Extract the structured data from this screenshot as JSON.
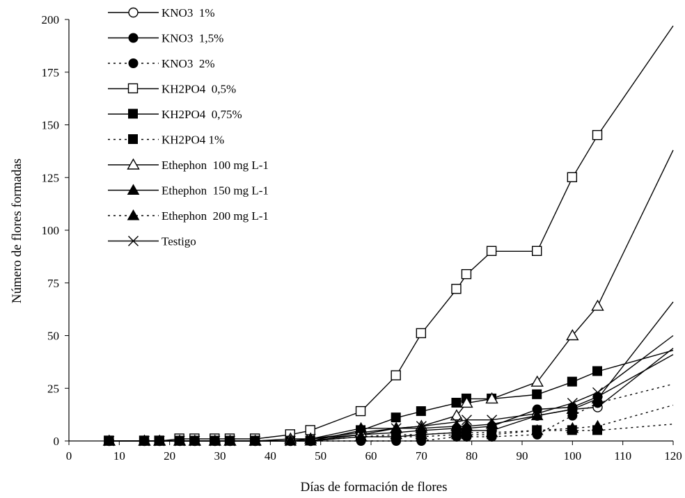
{
  "chart_data": {
    "type": "line",
    "title": "",
    "xlabel": "Días de formación de flores",
    "ylabel": "Número de flores formadas",
    "xlim": [
      0,
      120
    ],
    "ylim": [
      0,
      200
    ],
    "xticks": [
      "0",
      "10",
      "20",
      "30",
      "40",
      "50",
      "60",
      "70",
      "80",
      "90",
      "100",
      "110",
      "120"
    ],
    "yticks": [
      "0",
      "25",
      "50",
      "75",
      "100",
      "125",
      "150",
      "175",
      "200"
    ],
    "grid": false,
    "legend_position": "top-left",
    "line_color": "#000000",
    "series": [
      {
        "name": "KNO3  1%",
        "marker": "circle-open",
        "line": "solid",
        "x": [
          8,
          15,
          18,
          22,
          25,
          29,
          32,
          37,
          44,
          48,
          58,
          65,
          70,
          77,
          79,
          84,
          93,
          100,
          105
        ],
        "y": [
          0,
          0,
          0,
          0,
          0,
          0,
          0,
          0,
          0,
          0,
          2,
          2,
          3,
          4,
          5,
          5,
          12,
          15,
          16
        ],
        "trend": [
          [
            105,
            16
          ],
          [
            120,
            44
          ]
        ]
      },
      {
        "name": "KNO3  1,5%",
        "marker": "circle-filled",
        "line": "solid",
        "x": [
          8,
          15,
          18,
          22,
          25,
          29,
          32,
          37,
          44,
          48,
          58,
          65,
          70,
          77,
          79,
          84,
          93,
          100,
          105
        ],
        "y": [
          0,
          0,
          0,
          0,
          0,
          0,
          0,
          0,
          0,
          0,
          3,
          4,
          5,
          6,
          6,
          7,
          15,
          16,
          21
        ],
        "trend": [
          [
            105,
            21
          ],
          [
            120,
            41
          ]
        ]
      },
      {
        "name": "KNO3  2%",
        "marker": "circle-filled",
        "line": "dotted",
        "x": [
          8,
          15,
          18,
          22,
          25,
          29,
          32,
          37,
          44,
          48,
          58,
          65,
          70,
          77,
          79,
          84,
          93,
          100,
          105
        ],
        "y": [
          0,
          0,
          0,
          0,
          0,
          0,
          0,
          0,
          0,
          0,
          0,
          0,
          0,
          2,
          2,
          2,
          3,
          12,
          18
        ],
        "trend": [
          [
            105,
            18
          ],
          [
            120,
            27
          ]
        ]
      },
      {
        "name": "KH2PO4  0,5%",
        "marker": "square-open",
        "line": "solid",
        "x": [
          8,
          15,
          18,
          22,
          25,
          29,
          32,
          37,
          44,
          48,
          58,
          65,
          70,
          77,
          79,
          84,
          93,
          100,
          105
        ],
        "y": [
          0,
          0,
          0,
          1,
          1,
          1,
          1,
          1,
          3,
          5,
          14,
          31,
          51,
          72,
          79,
          90,
          90,
          125,
          145
        ],
        "trend": [
          [
            105,
            145
          ],
          [
            120,
            197
          ]
        ]
      },
      {
        "name": "KH2PO4  0,75%",
        "marker": "square-filled",
        "line": "solid",
        "x": [
          8,
          15,
          18,
          22,
          25,
          29,
          32,
          37,
          44,
          48,
          58,
          65,
          70,
          77,
          79,
          84,
          93,
          100,
          105
        ],
        "y": [
          0,
          0,
          0,
          0,
          0,
          0,
          0,
          0,
          0,
          0,
          5,
          11,
          14,
          18,
          20,
          20,
          22,
          28,
          33
        ],
        "trend": [
          [
            105,
            33
          ],
          [
            120,
            43
          ]
        ]
      },
      {
        "name": "KH2PO4 1%",
        "marker": "square-filled",
        "line": "dotted",
        "x": [
          8,
          15,
          18,
          22,
          25,
          29,
          32,
          37,
          44,
          48,
          58,
          65,
          70,
          77,
          79,
          84,
          93,
          100,
          105
        ],
        "y": [
          0,
          0,
          0,
          0,
          0,
          0,
          0,
          0,
          0,
          0,
          2,
          2,
          2,
          3,
          3,
          3,
          5,
          5,
          5
        ],
        "trend": [
          [
            105,
            5
          ],
          [
            120,
            8
          ]
        ]
      },
      {
        "name": "Ethephon  100 mg L-1",
        "marker": "triangle-open",
        "line": "solid",
        "x": [
          8,
          15,
          18,
          22,
          25,
          29,
          32,
          37,
          44,
          48,
          58,
          65,
          70,
          77,
          79,
          84,
          93,
          100,
          105
        ],
        "y": [
          0,
          0,
          0,
          0,
          0,
          0,
          0,
          0,
          1,
          1,
          4,
          6,
          7,
          12,
          18,
          20,
          28,
          50,
          64
        ],
        "trend": [
          [
            105,
            64
          ],
          [
            120,
            138
          ]
        ]
      },
      {
        "name": "Ethephon  150 mg L-1",
        "marker": "triangle-filled",
        "line": "solid",
        "x": [
          8,
          15,
          18,
          22,
          25,
          29,
          32,
          37,
          44,
          48,
          58,
          65,
          70,
          77,
          79,
          84,
          93,
          100,
          105
        ],
        "y": [
          0,
          0,
          0,
          0,
          0,
          0,
          0,
          0,
          0,
          1,
          6,
          6,
          6,
          7,
          7,
          8,
          12,
          15,
          20
        ],
        "trend": [
          [
            105,
            20
          ],
          [
            120,
            66
          ]
        ]
      },
      {
        "name": "Ethephon  200 mg L-1",
        "marker": "triangle-filled",
        "line": "dotted",
        "x": [
          8,
          15,
          18,
          22,
          25,
          29,
          32,
          37,
          44,
          48,
          58,
          65,
          70,
          77,
          79,
          84,
          93,
          100,
          105
        ],
        "y": [
          0,
          0,
          0,
          0,
          0,
          0,
          0,
          0,
          0,
          0,
          2,
          3,
          3,
          4,
          4,
          4,
          5,
          6,
          7
        ],
        "trend": [
          [
            105,
            7
          ],
          [
            120,
            17
          ]
        ]
      },
      {
        "name": "Testigo",
        "marker": "x",
        "line": "solid",
        "x": [
          8,
          15,
          18,
          22,
          25,
          29,
          32,
          37,
          44,
          48,
          58,
          65,
          70,
          77,
          79,
          84,
          93,
          100,
          105
        ],
        "y": [
          0,
          0,
          0,
          0,
          0,
          0,
          0,
          0,
          0,
          1,
          3,
          6,
          7,
          9,
          10,
          10,
          13,
          18,
          23
        ],
        "trend": [
          [
            105,
            23
          ],
          [
            120,
            50
          ]
        ]
      }
    ]
  }
}
